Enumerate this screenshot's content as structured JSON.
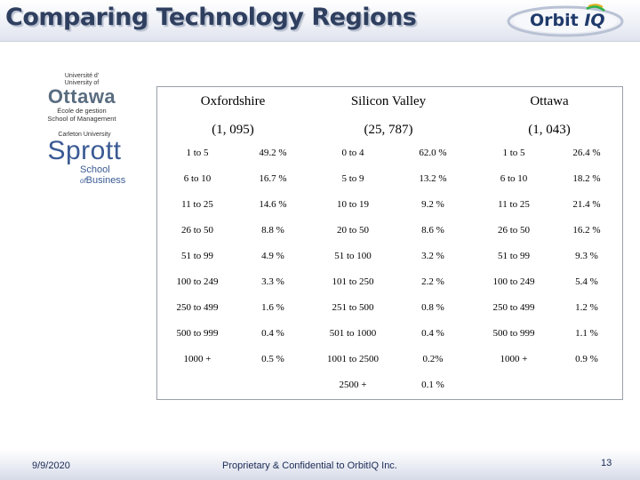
{
  "header": {
    "title": "Comparing Technology Regions"
  },
  "logos": {
    "orbit": {
      "word": "Orbit",
      "suffix": "IQ"
    },
    "uottawa": {
      "line1": "Université d'",
      "line2": "University of",
      "name": "Ottawa",
      "sub1": "École de gestion",
      "sub2": "School of Management"
    },
    "sprott": {
      "line1": "Carleton University",
      "name": "Sprott",
      "sub1": "School",
      "sub2_prefix": "of",
      "sub2": "Business"
    }
  },
  "table": {
    "regions": [
      {
        "name": "Oxfordshire",
        "count": "(1, 095)"
      },
      {
        "name": "Silicon Valley",
        "count": "(25, 787)"
      },
      {
        "name": "Ottawa",
        "count": "(1, 043)"
      }
    ],
    "rows": [
      [
        "1 to 5",
        "49.2 %",
        "0 to 4",
        "62.0 %",
        "1 to 5",
        "26.4 %"
      ],
      [
        "6 to 10",
        "16.7 %",
        "5 to 9",
        "13.2 %",
        "6 to 10",
        "18.2 %"
      ],
      [
        "11 to 25",
        "14.6 %",
        "10 to 19",
        "9.2 %",
        "11 to 25",
        "21.4 %"
      ],
      [
        "26 to 50",
        "8.8 %",
        "20 to 50",
        "8.6 %",
        "26 to 50",
        "16.2 %"
      ],
      [
        "51 to 99",
        "4.9 %",
        "51 to 100",
        "3.2 %",
        "51 to 99",
        "9.3 %"
      ],
      [
        "100 to 249",
        "3.3 %",
        "101 to 250",
        "2.2 %",
        "100 to 249",
        "5.4 %"
      ],
      [
        "250 to 499",
        "1.6 %",
        "251 to 500",
        "0.8 %",
        "250 to 499",
        "1.2 %"
      ],
      [
        "500 to 999",
        "0.4 %",
        "501 to 1000",
        "0.4 %",
        "500 to 999",
        "1.1 %"
      ],
      [
        "1000 +",
        "0.5 %",
        "1001 to 2500",
        "0.2%",
        "1000 +",
        "0.9 %"
      ],
      [
        "",
        "",
        "2500 +",
        "0.1 %",
        "",
        ""
      ]
    ]
  },
  "footer": {
    "date": "9/9/2020",
    "text": "Proprietary & Confidential to OrbitIQ Inc.",
    "page": "13"
  }
}
